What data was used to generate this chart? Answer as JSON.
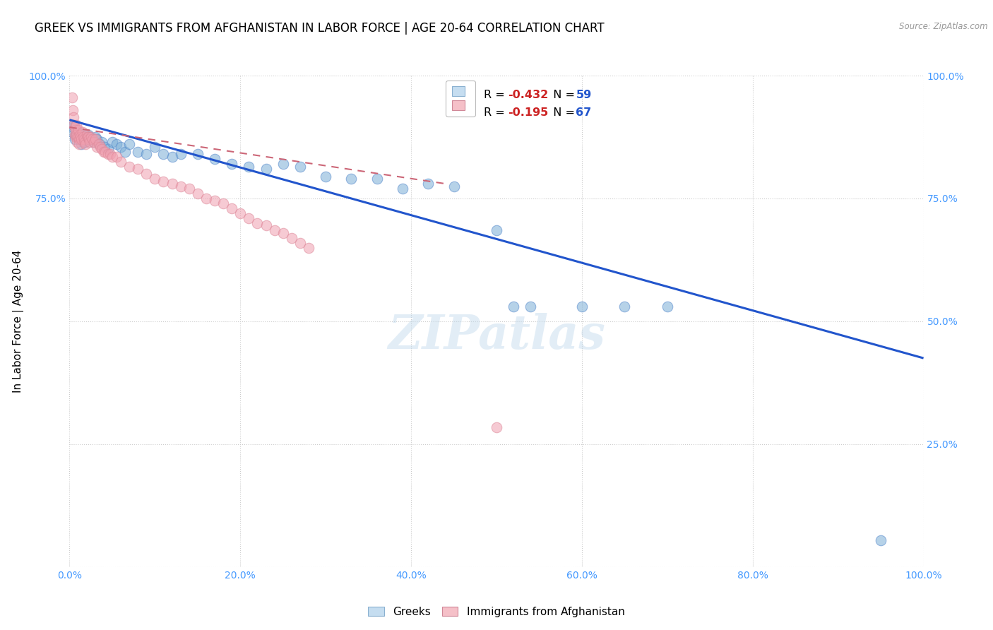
{
  "title": "GREEK VS IMMIGRANTS FROM AFGHANISTAN IN LABOR FORCE | AGE 20-64 CORRELATION CHART",
  "source": "Source: ZipAtlas.com",
  "ylabel": "In Labor Force | Age 20-64",
  "xlim": [
    0.0,
    1.0
  ],
  "ylim": [
    0.0,
    1.0
  ],
  "xticks": [
    0.0,
    0.2,
    0.4,
    0.6,
    0.8,
    1.0
  ],
  "yticks_left": [
    0.0,
    0.25,
    0.5,
    0.75,
    1.0
  ],
  "yticks_right": [
    0.0,
    0.25,
    0.5,
    0.75,
    1.0
  ],
  "xticklabels": [
    "0.0%",
    "20.0%",
    "40.0%",
    "60.0%",
    "80.0%",
    "100.0%"
  ],
  "yticklabels_left": [
    "",
    "",
    "",
    "75.0%",
    "100.0%"
  ],
  "yticklabels_right": [
    "",
    "25.0%",
    "50.0%",
    "75.0%",
    "100.0%"
  ],
  "watermark": "ZIPatlas",
  "blue_color": "#7aaed6",
  "pink_color": "#f0a0b0",
  "blue_line_color": "#2255cc",
  "pink_line_color": "#cc6677",
  "background_color": "#ffffff",
  "grid_color": "#cccccc",
  "title_fontsize": 12,
  "axis_label_fontsize": 11,
  "tick_color": "#4499ff",
  "tick_fontsize": 10,
  "legend_R_color": "#dd3333",
  "legend_N_color": "#2255cc",
  "blue_legend_label_R": "R = ",
  "blue_legend_R_val": "-0.432",
  "blue_legend_N_val": "59",
  "pink_legend_R_val": "-0.195",
  "pink_legend_N_val": "67",
  "blue_line_x0": 0.0,
  "blue_line_x1": 1.0,
  "blue_line_y0": 0.91,
  "blue_line_y1": 0.425,
  "pink_line_x0": 0.0,
  "pink_line_x1": 0.44,
  "pink_line_y0": 0.895,
  "pink_line_y1": 0.78,
  "blue_scatter_x": [
    0.003,
    0.004,
    0.005,
    0.006,
    0.007,
    0.008,
    0.009,
    0.01,
    0.011,
    0.012,
    0.013,
    0.014,
    0.015,
    0.016,
    0.017,
    0.018,
    0.019,
    0.02,
    0.022,
    0.024,
    0.026,
    0.028,
    0.03,
    0.032,
    0.035,
    0.038,
    0.041,
    0.045,
    0.05,
    0.055,
    0.06,
    0.065,
    0.07,
    0.08,
    0.09,
    0.1,
    0.11,
    0.12,
    0.13,
    0.15,
    0.17,
    0.19,
    0.21,
    0.23,
    0.25,
    0.27,
    0.3,
    0.33,
    0.36,
    0.39,
    0.42,
    0.45,
    0.5,
    0.52,
    0.54,
    0.6,
    0.65,
    0.7,
    0.95
  ],
  "blue_scatter_y": [
    0.885,
    0.895,
    0.9,
    0.87,
    0.88,
    0.89,
    0.875,
    0.885,
    0.87,
    0.88,
    0.875,
    0.86,
    0.87,
    0.865,
    0.875,
    0.88,
    0.865,
    0.87,
    0.88,
    0.875,
    0.87,
    0.865,
    0.875,
    0.87,
    0.86,
    0.865,
    0.855,
    0.85,
    0.865,
    0.86,
    0.855,
    0.845,
    0.86,
    0.845,
    0.84,
    0.855,
    0.84,
    0.835,
    0.84,
    0.84,
    0.83,
    0.82,
    0.815,
    0.81,
    0.82,
    0.815,
    0.795,
    0.79,
    0.79,
    0.77,
    0.78,
    0.775,
    0.685,
    0.53,
    0.53,
    0.53,
    0.53,
    0.53,
    0.055
  ],
  "pink_scatter_x": [
    0.003,
    0.004,
    0.005,
    0.005,
    0.006,
    0.006,
    0.007,
    0.007,
    0.008,
    0.008,
    0.009,
    0.009,
    0.01,
    0.01,
    0.011,
    0.011,
    0.012,
    0.013,
    0.014,
    0.015,
    0.016,
    0.017,
    0.018,
    0.019,
    0.02,
    0.021,
    0.022,
    0.023,
    0.024,
    0.025,
    0.027,
    0.029,
    0.03,
    0.032,
    0.034,
    0.036,
    0.038,
    0.04,
    0.042,
    0.045,
    0.048,
    0.05,
    0.055,
    0.06,
    0.07,
    0.08,
    0.09,
    0.1,
    0.11,
    0.12,
    0.13,
    0.14,
    0.15,
    0.16,
    0.17,
    0.18,
    0.19,
    0.2,
    0.21,
    0.22,
    0.23,
    0.24,
    0.25,
    0.26,
    0.27,
    0.28,
    0.5
  ],
  "pink_scatter_y": [
    0.955,
    0.93,
    0.915,
    0.9,
    0.895,
    0.88,
    0.89,
    0.875,
    0.9,
    0.88,
    0.875,
    0.865,
    0.89,
    0.875,
    0.87,
    0.86,
    0.88,
    0.875,
    0.87,
    0.885,
    0.875,
    0.87,
    0.865,
    0.86,
    0.88,
    0.875,
    0.875,
    0.87,
    0.865,
    0.875,
    0.87,
    0.865,
    0.87,
    0.855,
    0.86,
    0.855,
    0.85,
    0.845,
    0.845,
    0.84,
    0.84,
    0.835,
    0.835,
    0.825,
    0.815,
    0.81,
    0.8,
    0.79,
    0.785,
    0.78,
    0.775,
    0.77,
    0.76,
    0.75,
    0.745,
    0.74,
    0.73,
    0.72,
    0.71,
    0.7,
    0.695,
    0.685,
    0.68,
    0.67,
    0.66,
    0.65,
    0.285
  ]
}
